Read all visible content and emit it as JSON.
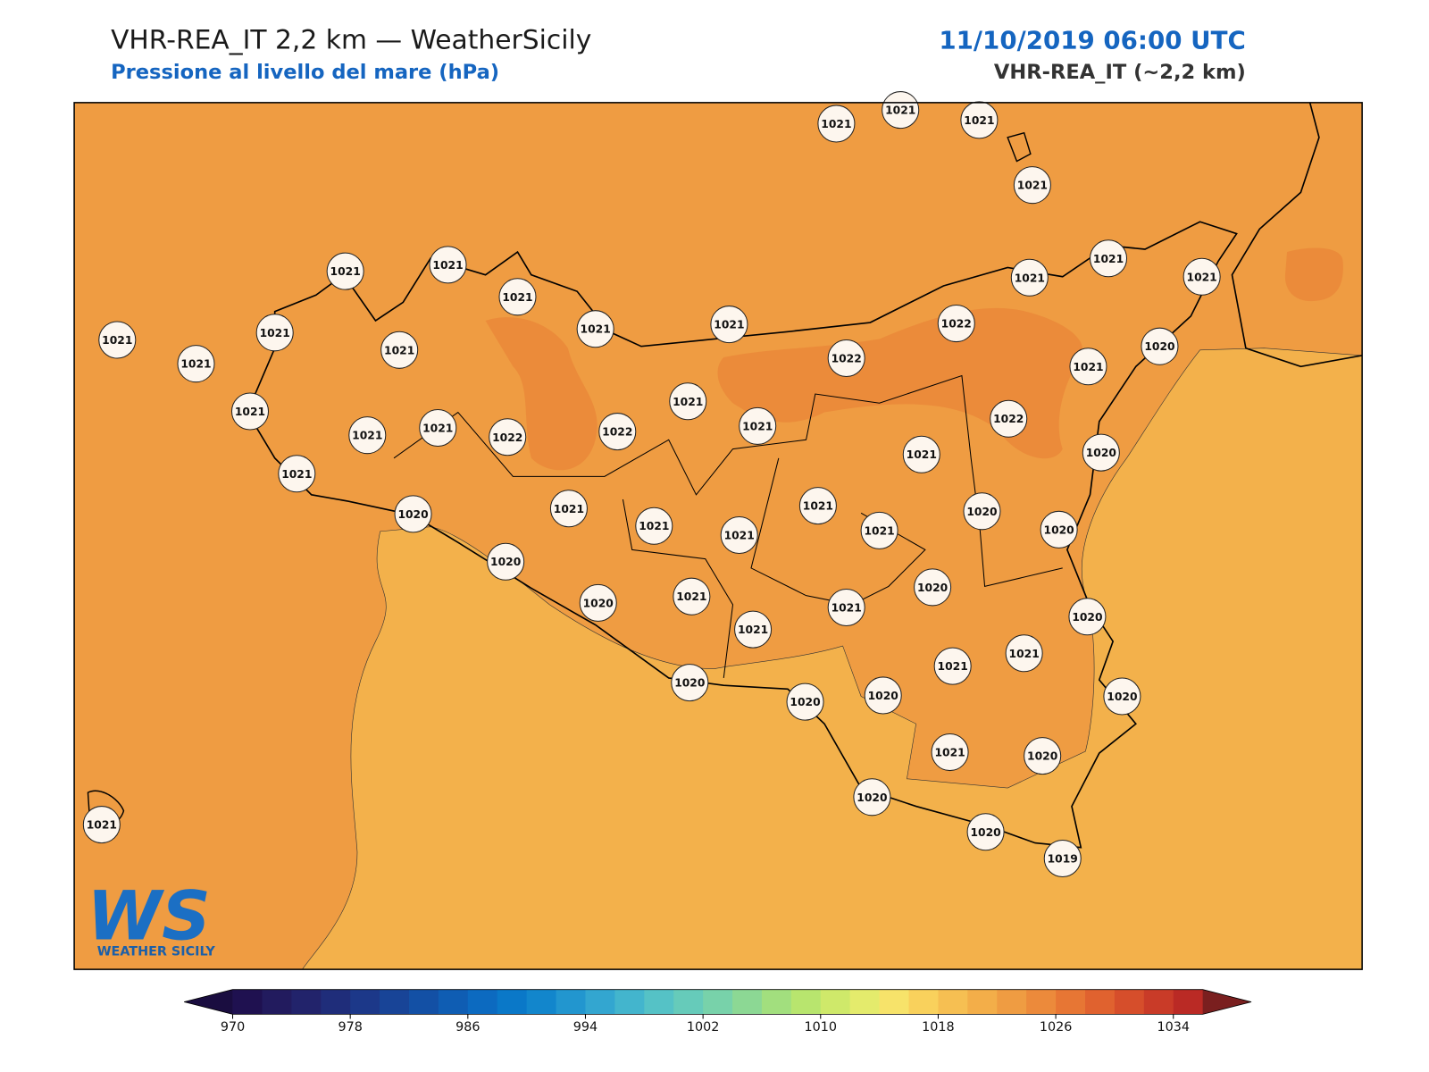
{
  "title": "VHR-REA_IT 2,2 km — WeatherSicily",
  "subtitle": "Pressione al livello del mare (hPa)",
  "date": "11/10/2019 06:00 UTC",
  "model": "VHR-REA_IT (~2,2 km)",
  "logo": {
    "mark": "WS",
    "text": "WEATHER SICILY"
  },
  "stations": {
    "values": [
      1021,
      1021,
      1021,
      1021,
      1021,
      1021,
      1021,
      1021,
      1021,
      1021,
      1021,
      1021,
      1021,
      1021,
      1021,
      1021,
      1022,
      1022,
      1020,
      1021,
      1021,
      1021,
      1021,
      1021,
      1022,
      1022,
      1021,
      1022,
      1021,
      1020,
      1021,
      1020,
      1021,
      1021,
      1020,
      1021,
      1021,
      1021,
      1020,
      1020,
      1020,
      1020,
      1021,
      1021,
      1020,
      1021,
      1021,
      1021,
      1020,
      1020,
      1020,
      1020,
      1021,
      1020,
      1020,
      1021,
      1020,
      1019
    ]
  },
  "colorbar": {
    "lim": [
      970,
      1036
    ],
    "ticks": [
      970,
      978,
      986,
      994,
      1002,
      1010,
      1018,
      1026,
      1034
    ],
    "colors": [
      "#1f1150",
      "#221b5e",
      "#22236b",
      "#1f2d7a",
      "#1c3889",
      "#184497",
      "#1350a5",
      "#0f5db3",
      "#0c6ac0",
      "#0a78c8",
      "#1286cc",
      "#2296cf",
      "#33a6d0",
      "#43b5cd",
      "#55c2c6",
      "#66cbba",
      "#78d2aa",
      "#8cd894",
      "#a2df7e",
      "#b8e56e",
      "#cfe96a",
      "#e4eb6c",
      "#f7e36a",
      "#f9d15c",
      "#f6bf52",
      "#f3ae49",
      "#ef9c42",
      "#ec8a3b",
      "#e77634",
      "#e0622f",
      "#d64e2b",
      "#c93b28",
      "#ba2a25"
    ],
    "under_color": "#1a0d40",
    "over_color": "#7a1f1f"
  }
}
